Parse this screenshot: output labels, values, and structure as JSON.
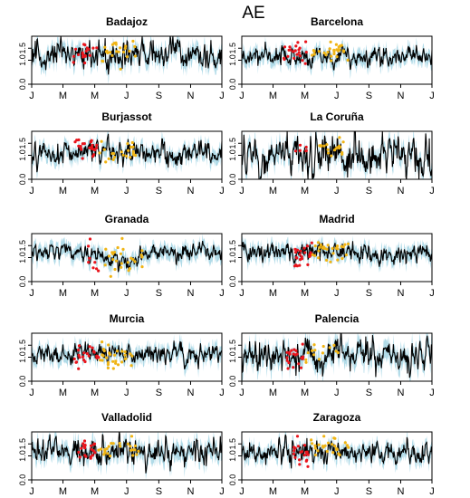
{
  "figure": {
    "title": "AE"
  },
  "chart_data": {
    "type": "line",
    "shared_x_tick_labels": [
      "J",
      "M",
      "M",
      "J",
      "S",
      "N",
      "J"
    ],
    "shared_y_tick_labels": [
      "0.0",
      "1.0",
      "1.5"
    ],
    "x_range_days": [
      0,
      365
    ],
    "ylim": [
      0,
      2
    ],
    "grid": false,
    "colors": {
      "line": "#000000",
      "band": "#87c8dc",
      "red_points": "#e8141c",
      "orange_points": "#f0b414"
    },
    "panels": [
      {
        "title": "Badajoz",
        "base": 1.25,
        "noise": 0.25,
        "band": 0.35,
        "dip": {
          "center": 165,
          "width": 30,
          "depth": 0.15
        },
        "red": {
          "range": [
            80,
            125
          ],
          "n": 18,
          "mean": 1.25,
          "sd": 0.35
        },
        "orange": {
          "range": [
            135,
            200
          ],
          "n": 24,
          "mean": 1.35,
          "sd": 0.35
        }
      },
      {
        "title": "Barcelona",
        "base": 1.15,
        "noise": 0.18,
        "band": 0.3,
        "dip": null,
        "red": {
          "range": [
            80,
            125
          ],
          "n": 22,
          "mean": 1.3,
          "sd": 0.35
        },
        "orange": {
          "range": [
            130,
            205
          ],
          "n": 28,
          "mean": 1.4,
          "sd": 0.25
        }
      },
      {
        "title": "Burjassot",
        "base": 1.1,
        "noise": 0.2,
        "band": 0.3,
        "dip": null,
        "red": {
          "range": [
            80,
            125
          ],
          "n": 22,
          "mean": 1.3,
          "sd": 0.3
        },
        "orange": {
          "range": [
            130,
            200
          ],
          "n": 22,
          "mean": 1.15,
          "sd": 0.35
        }
      },
      {
        "title": "La Coruña",
        "base": 0.95,
        "noise": 0.35,
        "band": 0.35,
        "dip": null,
        "red": {
          "range": [
            100,
            130
          ],
          "n": 6,
          "mean": 1.3,
          "sd": 0.2
        },
        "orange": {
          "range": [
            130,
            200
          ],
          "n": 18,
          "mean": 1.25,
          "sd": 0.25
        }
      },
      {
        "title": "Granada",
        "base": 1.25,
        "noise": 0.14,
        "band": 0.3,
        "dip": {
          "center": 175,
          "width": 45,
          "depth": 0.45
        },
        "red": {
          "range": [
            100,
            135
          ],
          "n": 8,
          "mean": 0.8,
          "sd": 0.35
        },
        "orange": {
          "range": [
            135,
            215
          ],
          "n": 26,
          "mean": 1.0,
          "sd": 0.35
        }
      },
      {
        "title": "Madrid",
        "base": 1.2,
        "noise": 0.18,
        "band": 0.3,
        "dip": null,
        "red": {
          "range": [
            100,
            135
          ],
          "n": 24,
          "mean": 1.2,
          "sd": 0.3
        },
        "orange": {
          "range": [
            135,
            205
          ],
          "n": 28,
          "mean": 1.25,
          "sd": 0.3
        }
      },
      {
        "title": "Murcia",
        "base": 1.15,
        "noise": 0.18,
        "band": 0.3,
        "dip": null,
        "red": {
          "range": [
            80,
            130
          ],
          "n": 22,
          "mean": 0.95,
          "sd": 0.35
        },
        "orange": {
          "range": [
            130,
            205
          ],
          "n": 30,
          "mean": 0.95,
          "sd": 0.35
        }
      },
      {
        "title": "Palencia",
        "base": 1.1,
        "noise": 0.28,
        "band": 0.4,
        "dip": null,
        "red": {
          "range": [
            85,
            120
          ],
          "n": 20,
          "mean": 1.05,
          "sd": 0.4
        },
        "orange": {
          "range": [
            120,
            185
          ],
          "n": 14,
          "mean": 1.25,
          "sd": 0.25
        }
      },
      {
        "title": "Valladolid",
        "base": 1.2,
        "noise": 0.25,
        "band": 0.35,
        "dip": null,
        "red": {
          "range": [
            90,
            125
          ],
          "n": 20,
          "mean": 1.25,
          "sd": 0.35
        },
        "orange": {
          "range": [
            125,
            205
          ],
          "n": 24,
          "mean": 1.25,
          "sd": 0.3
        }
      },
      {
        "title": "Zaragoza",
        "base": 1.15,
        "noise": 0.2,
        "band": 0.3,
        "dip": null,
        "red": {
          "range": [
            95,
            130
          ],
          "n": 20,
          "mean": 1.1,
          "sd": 0.35
        },
        "orange": {
          "range": [
            130,
            205
          ],
          "n": 26,
          "mean": 1.4,
          "sd": 0.25
        }
      }
    ]
  }
}
